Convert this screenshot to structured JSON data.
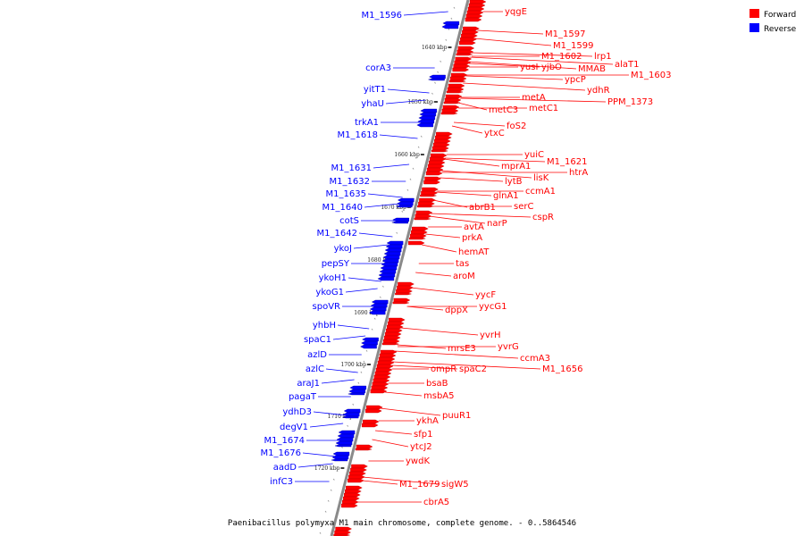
{
  "colors": {
    "forward": "#ff0000",
    "reverse": "#0000ff",
    "axis": "#8a8a8a"
  },
  "legend": [
    {
      "label": "Forward",
      "color": "#ff0000"
    },
    {
      "label": "Reverse",
      "color": "#0000ff"
    }
  ],
  "caption": "Paenibacillus polymyxa M1 main chromosome, complete genome. - 0..5864546",
  "ticks": [
    "1640 kbp",
    "1650 kbp",
    "1660 kbp",
    "1670 kbp",
    "1680 kbp",
    "1690 kbp",
    "1700 kbp",
    "1710 kbp",
    "1720 kbp"
  ],
  "forward_genes": [
    "yqgE",
    "M1_1597",
    "M1_1599",
    "M1_1602",
    "lrp1",
    "alaT1",
    "yusI",
    "yjbO",
    "MMAB",
    "M1_1603",
    "ypcP",
    "ydhR",
    "metA",
    "PPM_1373",
    "metC3",
    "metC1",
    "foS2",
    "ytxC",
    "yuiC",
    "M1_1621",
    "mprA1",
    "htrA",
    "lytB",
    "lisK",
    "ccmA1",
    "glnA1",
    "abrB1",
    "serC",
    "cspR",
    "narP",
    "avtA",
    "prkA",
    "hemAT",
    "tas",
    "aroM",
    "yycF",
    "yycG1",
    "dppX",
    "yvrH",
    "yvrG",
    "mrsE3",
    "ccmA3",
    "ompR",
    "spaC2",
    "M1_1656",
    "bsaB",
    "msbA5",
    "puuR1",
    "ykhA",
    "sfp1",
    "ytcJ2",
    "ywdK",
    "M1_1679",
    "sigW5",
    "cbrA5"
  ],
  "reverse_genes": [
    "M1_1596",
    "corA3",
    "yitT1",
    "yhaU",
    "trkA1",
    "M1_1618",
    "M1_1631",
    "M1_1632",
    "M1_1635",
    "M1_1640",
    "cotS",
    "M1_1642",
    "ykoJ",
    "pepSY",
    "ykoH1",
    "ykoG1",
    "spoVR",
    "yhbH",
    "spaC1",
    "azlD",
    "azlC",
    "araJ1",
    "pagaT",
    "ydhD3",
    "degV1",
    "M1_1674",
    "M1_1676",
    "aadD",
    "infC3"
  ]
}
